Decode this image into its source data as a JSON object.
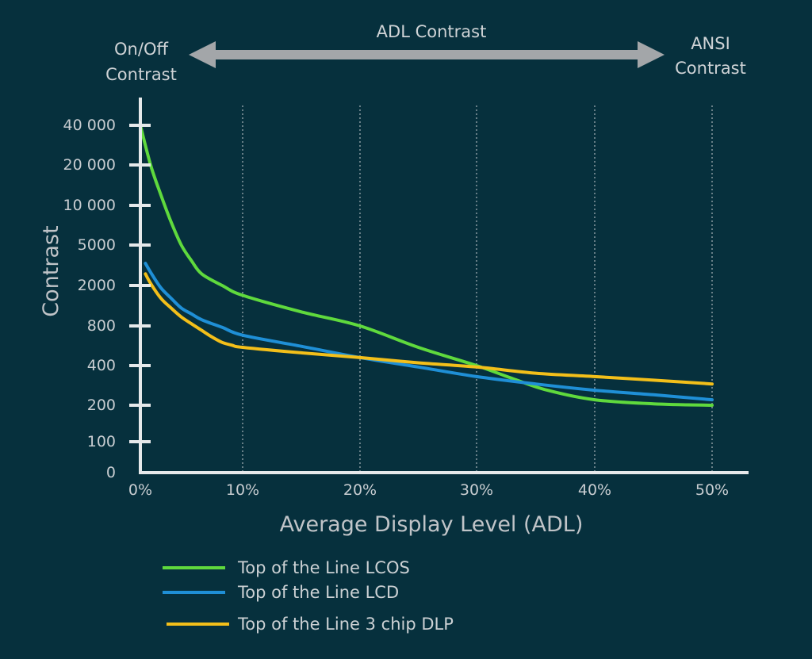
{
  "header": {
    "left_line1": "On/Off",
    "left_line2": "Contrast",
    "center": "ADL Contrast",
    "right_line1": "ANSI",
    "right_line2": "Contrast"
  },
  "colors": {
    "background": "#06303d",
    "axis": "#e6e9eb",
    "arrow": "#a3a6a9",
    "gridline": "#c9ced1"
  },
  "chart_data": {
    "type": "line",
    "xlabel": "Average Display Level (ADL)",
    "ylabel": "Contrast",
    "x_ticks": [
      "0%",
      "10%",
      "20%",
      "30%",
      "40%",
      "50%"
    ],
    "y_ticks": [
      "0",
      "100",
      "200",
      "400",
      "800",
      "2000",
      "5000",
      "10 000",
      "20 000",
      "40 000"
    ],
    "xlim": [
      0,
      50
    ],
    "y_scale": "log (non-uniform tick spacing)",
    "grid": "vertical dotted lines at 10%, 20%, 30%, 40%, 50%",
    "legend_position": "bottom-left",
    "series": [
      {
        "name": "Top of the Line LCOS",
        "color": "#5fd93d",
        "x": [
          0,
          1,
          2,
          3,
          4,
          5,
          6,
          8,
          10,
          15,
          20,
          25,
          30,
          33,
          36,
          40,
          45,
          50
        ],
        "y": [
          40000,
          20000,
          12000,
          7500,
          5000,
          3500,
          2600,
          2000,
          1600,
          1100,
          800,
          550,
          400,
          320,
          260,
          220,
          205,
          200
        ]
      },
      {
        "name": "Top of the Line LCD",
        "color": "#1f8fd6",
        "x": [
          0.5,
          1,
          2,
          3,
          4,
          5,
          6,
          8,
          10,
          15,
          20,
          25,
          30,
          35,
          40,
          45,
          50
        ],
        "y": [
          3300,
          2700,
          1900,
          1500,
          1200,
          1050,
          920,
          780,
          680,
          560,
          460,
          390,
          330,
          290,
          260,
          240,
          220
        ]
      },
      {
        "name": "Top of the Line 3 chip DLP",
        "color": "#f3bf1a",
        "x": [
          0.5,
          1,
          2,
          3,
          4,
          5,
          6,
          7,
          8,
          9,
          10,
          15,
          20,
          25,
          30,
          35,
          40,
          45,
          50
        ],
        "y": [
          2600,
          2100,
          1500,
          1200,
          980,
          840,
          740,
          660,
          600,
          570,
          550,
          500,
          460,
          420,
          390,
          350,
          330,
          310,
          290
        ]
      }
    ]
  }
}
